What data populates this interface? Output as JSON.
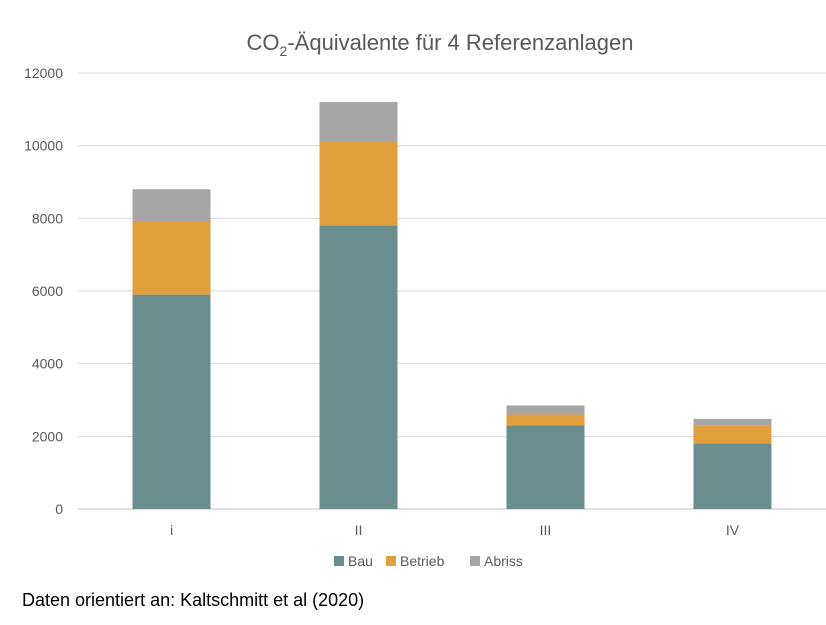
{
  "chart_data": {
    "type": "bar",
    "stacked": true,
    "title": {
      "prefix": "CO",
      "subscript": "2",
      "suffix": "-Äquivalente für 4 Referenzanlagen"
    },
    "categories": [
      "i",
      "II",
      "III",
      "IV"
    ],
    "series": [
      {
        "name": "Bau",
        "color": "#6a8e8d",
        "values": [
          5900,
          7800,
          2300,
          1800
        ]
      },
      {
        "name": "Betrieb",
        "color": "#e09f3a",
        "values": [
          2000,
          2300,
          300,
          500
        ]
      },
      {
        "name": "Abriss",
        "color": "#a6a6a6",
        "values": [
          900,
          1100,
          250,
          180
        ]
      }
    ],
    "ylim": [
      0,
      12000
    ],
    "yticks": [
      0,
      2000,
      4000,
      6000,
      8000,
      10000,
      12000
    ],
    "grid": true,
    "legend_position": "bottom",
    "xlabel": "",
    "ylabel": ""
  },
  "source_note": "Daten orientiert an: Kaltschmitt et al (2020)"
}
